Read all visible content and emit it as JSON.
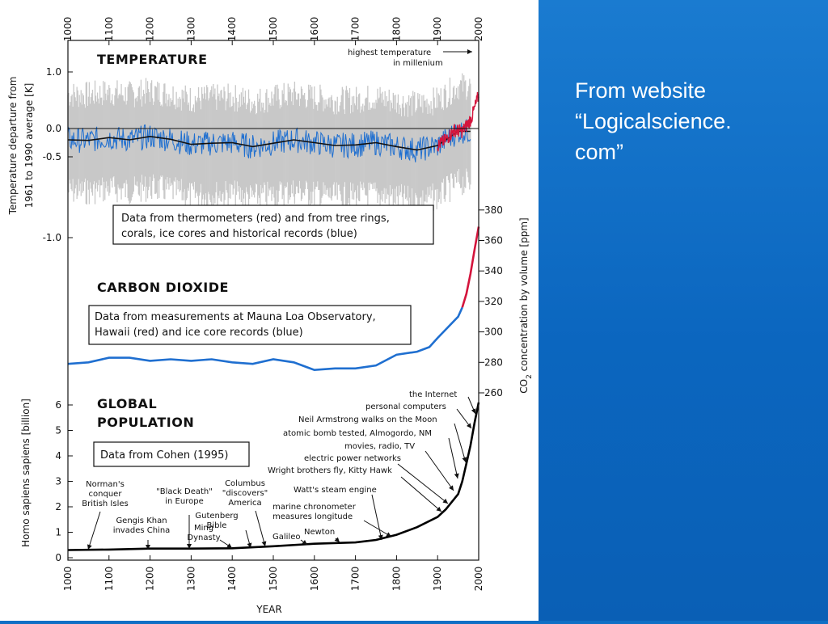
{
  "caption": {
    "line1": "From website",
    "line2": "“Logicalscience.",
    "line3": "com”"
  },
  "colors": {
    "slide_background": "#0b66bf",
    "panel_background": "#ffffff",
    "proxy_series": "#1f6fd0",
    "instrumental_series": "#d4143c",
    "uncertainty_band": "#c8c8c8",
    "population_line": "#000000"
  },
  "chart_data": [
    {
      "type": "line",
      "title": "TEMPERATURE",
      "ylabel_line1": "Temperature departure from",
      "ylabel_line2": "1961 to 1990 average [K]",
      "x_ticks": [
        "1000",
        "1100",
        "1200",
        "1300",
        "1400",
        "1500",
        "1600",
        "1700",
        "1800",
        "1900",
        "2000"
      ],
      "y_ticks": [
        "1.0",
        "0.0",
        "-0.5",
        "-1.0"
      ],
      "xlim": [
        1000,
        2000
      ],
      "ylim": [
        -1.0,
        1.0
      ],
      "grid": false,
      "note": "Data from thermometers (red) and from tree rings, corals, ice cores and historical records (blue)",
      "annotation_line1": "highest temperature",
      "annotation_line2": "in millenium",
      "series": [
        {
          "color": "blue",
          "x": [
            1000,
            1050,
            1100,
            1150,
            1200,
            1250,
            1300,
            1350,
            1400,
            1450,
            1500,
            1550,
            1600,
            1650,
            1700,
            1750,
            1800,
            1850,
            1900,
            1950,
            1980
          ],
          "y": [
            -0.2,
            -0.21,
            -0.16,
            -0.2,
            -0.14,
            -0.19,
            -0.28,
            -0.26,
            -0.25,
            -0.32,
            -0.26,
            -0.2,
            -0.25,
            -0.3,
            -0.29,
            -0.25,
            -0.32,
            -0.38,
            -0.3,
            -0.05,
            -0.05
          ]
        },
        {
          "color": "red",
          "x": [
            1900,
            1920,
            1940,
            1960,
            1980,
            1990,
            2000
          ],
          "y": [
            -0.3,
            -0.2,
            -0.03,
            -0.05,
            0.15,
            0.35,
            0.6
          ]
        }
      ]
    },
    {
      "type": "line",
      "title": "CARBON DIOXIDE",
      "ylabel_main": "CO",
      "ylabel_sub": "2",
      "ylabel_rest": " concentration by volume [ppm]",
      "y_ticks": [
        "260",
        "280",
        "300",
        "320",
        "340",
        "360",
        "380"
      ],
      "ylim": [
        260,
        380
      ],
      "grid": false,
      "note": "Data from measurements at Mauna Loa Observatory, Hawaii (red) and ice core records (blue)",
      "series": [
        {
          "color": "blue",
          "x": [
            1000,
            1050,
            1100,
            1150,
            1200,
            1250,
            1300,
            1350,
            1400,
            1450,
            1500,
            1550,
            1600,
            1650,
            1700,
            1750,
            1800,
            1850,
            1880,
            1900,
            1950,
            1960
          ],
          "y": [
            279,
            280,
            283,
            283,
            281,
            282,
            281,
            282,
            280,
            279,
            282,
            280,
            275,
            276,
            276,
            278,
            285,
            287,
            290,
            296,
            310,
            316
          ]
        },
        {
          "color": "red",
          "x": [
            1960,
            1970,
            1980,
            1990,
            2000
          ],
          "y": [
            316,
            325,
            338,
            354,
            369
          ]
        }
      ]
    },
    {
      "type": "line",
      "title_line1": "GLOBAL",
      "title_line2": "POPULATION",
      "ylabel": "Homo sapiens sapiens [billion]",
      "xlabel": "YEAR",
      "y_ticks": [
        "0",
        "1",
        "2",
        "3",
        "4",
        "5",
        "6"
      ],
      "ylim": [
        0,
        6
      ],
      "grid": false,
      "note": "Data from Cohen (1995)",
      "x": [
        1000,
        1100,
        1200,
        1300,
        1400,
        1500,
        1600,
        1700,
        1750,
        1800,
        1850,
        1900,
        1920,
        1950,
        1960,
        1970,
        1980,
        1990,
        2000
      ],
      "y": [
        0.3,
        0.32,
        0.36,
        0.36,
        0.37,
        0.45,
        0.55,
        0.6,
        0.7,
        0.9,
        1.2,
        1.6,
        1.9,
        2.5,
        3.0,
        3.7,
        4.4,
        5.3,
        6.1
      ],
      "events": {
        "normans": "Norman's|conquer|British Isles",
        "gengis": "Gengis Khan|invades China",
        "black_death": "\"Black Death\"|in Europe",
        "ming": "Ming|Dynasty",
        "gutenberg": "Gutenberg|Bible",
        "columbus": "Columbus|\"discovers\"|America",
        "galileo": "Galileo",
        "newton": "Newton",
        "marine": "marine chronometer|measures longitude",
        "watt": "Watt's steam engine",
        "wright": "Wright brothers fly, Kitty Hawk",
        "electric": "electric power networks",
        "movies": "movies, radio, TV",
        "atomic": "atomic bomb tested, Almogordo, NM",
        "armstrong": "Neil Armstrong walks on the Moon",
        "computers": "personal computers",
        "internet": "the Internet"
      }
    }
  ]
}
